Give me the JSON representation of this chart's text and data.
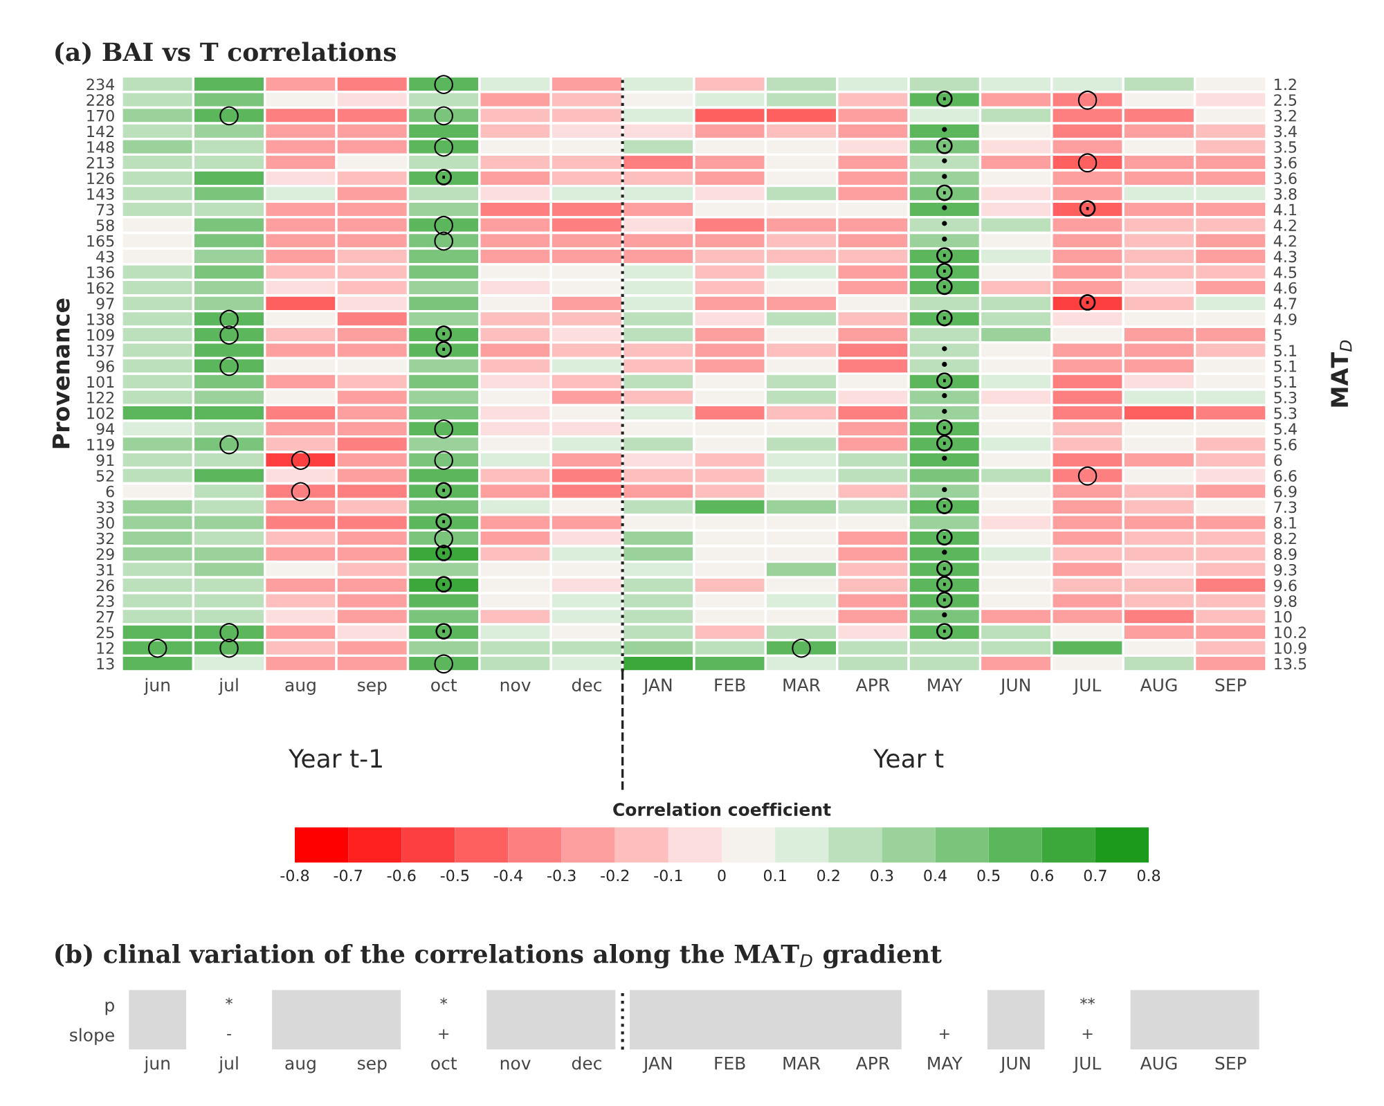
{
  "chart_data": [
    {
      "type": "heatmap",
      "title": "(a) BAI vs T correlations",
      "ylabel": "Provenance",
      "y2label": "MAT$_{D}$",
      "clabel": "Correlation coefficient",
      "annotations": [
        "Year t-1",
        "Year t"
      ],
      "categories": [
        "jun",
        "jul",
        "aug",
        "sep",
        "oct",
        "nov",
        "dec",
        "JAN",
        "FEB",
        "MAR",
        "APR",
        "MAY",
        "JUN",
        "JUL",
        "AUG",
        "SEP"
      ],
      "y_categories": [
        "234",
        "228",
        "170",
        "142",
        "148",
        "213",
        "126",
        "143",
        "73",
        "58",
        "165",
        "43",
        "136",
        "162",
        "97",
        "138",
        "109",
        "137",
        "96",
        "101",
        "122",
        "102",
        "94",
        "119",
        "91",
        "52",
        "6",
        "33",
        "30",
        "32",
        "29",
        "31",
        "26",
        "23",
        "27",
        "25",
        "12",
        "13"
      ],
      "y2_categories": [
        "1.2",
        "2.5",
        "3.2",
        "3.4",
        "3.5",
        "3.6",
        "3.6",
        "3.8",
        "4.1",
        "4.2",
        "4.2",
        "4.3",
        "4.5",
        "4.6",
        "4.7",
        "4.9",
        "5",
        "5.1",
        "5.1",
        "5.1",
        "5.3",
        "5.3",
        "5.4",
        "5.6",
        "6",
        "6.6",
        "6.9",
        "7.3",
        "8.1",
        "8.2",
        "8.9",
        "9.3",
        "9.6",
        "9.8",
        "10",
        "10.2",
        "10.9",
        "13.5"
      ],
      "clim": [
        -0.8,
        0.8
      ],
      "cticks": [
        -0.8,
        -0.7,
        -0.6,
        -0.5,
        -0.4,
        -0.3,
        -0.2,
        -0.1,
        0,
        0.1,
        0.2,
        0.3,
        0.4,
        0.5,
        0.6,
        0.7,
        0.8
      ],
      "cells": [
        [
          0.3,
          0.5,
          -0.25,
          -0.4,
          0.55,
          0.15,
          -0.2,
          0.15,
          -0.1,
          0.2,
          0.15,
          0.3,
          0.15,
          0.15,
          0.3,
          0.05
        ],
        [
          0.25,
          0.45,
          0.05,
          -0.05,
          0.3,
          -0.25,
          -0.15,
          0.05,
          0.15,
          0.25,
          -0.1,
          0.55,
          -0.2,
          -0.35,
          0.05,
          -0.05
        ],
        [
          0.35,
          0.6,
          -0.35,
          -0.35,
          0.45,
          -0.15,
          -0.1,
          0.15,
          -0.45,
          -0.45,
          -0.25,
          0.1,
          0.25,
          -0.35,
          -0.4,
          0.05
        ],
        [
          0.25,
          0.4,
          -0.3,
          -0.3,
          0.5,
          -0.1,
          -0.05,
          -0.05,
          -0.2,
          -0.15,
          -0.25,
          0.5,
          0.05,
          -0.35,
          -0.2,
          -0.15
        ],
        [
          0.4,
          0.3,
          -0.2,
          -0.2,
          0.5,
          0.05,
          0.05,
          0.3,
          0.05,
          0.05,
          -0.05,
          0.45,
          -0.05,
          -0.25,
          0.05,
          -0.15
        ],
        [
          0.2,
          0.2,
          -0.25,
          0.05,
          0.3,
          -0.1,
          -0.1,
          -0.35,
          -0.3,
          0.05,
          -0.25,
          0.3,
          -0.2,
          -0.45,
          -0.25,
          -0.2
        ],
        [
          0.3,
          0.5,
          -0.05,
          -0.15,
          0.6,
          -0.3,
          -0.1,
          -0.15,
          -0.2,
          0.05,
          -0.3,
          0.35,
          0.05,
          -0.2,
          -0.25,
          -0.2
        ],
        [
          0.25,
          0.45,
          0.15,
          -0.25,
          0.3,
          -0.05,
          0.1,
          0.15,
          -0.05,
          0.3,
          -0.3,
          0.45,
          -0.05,
          -0.2,
          0.15,
          0.15
        ],
        [
          0.3,
          0.3,
          -0.2,
          -0.2,
          0.35,
          -0.4,
          -0.35,
          -0.25,
          0.05,
          0.05,
          0.05,
          0.5,
          -0.05,
          -0.5,
          -0.3,
          -0.2
        ],
        [
          0.05,
          0.45,
          -0.25,
          -0.25,
          0.5,
          -0.2,
          -0.35,
          -0.05,
          -0.4,
          -0.3,
          -0.3,
          0.3,
          0.25,
          -0.3,
          -0.1,
          -0.15
        ],
        [
          0.05,
          0.45,
          -0.25,
          -0.3,
          0.45,
          -0.2,
          -0.25,
          -0.2,
          -0.3,
          -0.15,
          -0.3,
          0.35,
          0.05,
          -0.3,
          -0.1,
          -0.25
        ],
        [
          0.05,
          0.4,
          -0.2,
          -0.15,
          0.45,
          -0.2,
          -0.25,
          -0.2,
          -0.15,
          -0.1,
          -0.15,
          0.5,
          0.15,
          -0.25,
          -0.1,
          -0.2
        ],
        [
          0.3,
          0.45,
          -0.1,
          -0.1,
          0.45,
          0.05,
          0.05,
          0.15,
          -0.15,
          0.15,
          -0.3,
          0.55,
          0.05,
          -0.25,
          -0.1,
          -0.15
        ],
        [
          0.25,
          0.35,
          -0.05,
          -0.15,
          0.35,
          -0.05,
          0.05,
          0.15,
          -0.1,
          0.05,
          -0.3,
          0.55,
          -0.1,
          -0.25,
          -0.05,
          -0.2
        ],
        [
          0.25,
          0.4,
          -0.45,
          -0.05,
          0.45,
          0.05,
          -0.3,
          0.15,
          -0.25,
          -0.25,
          0.05,
          0.3,
          0.25,
          -0.6,
          -0.1,
          0.15
        ],
        [
          0.3,
          0.6,
          0.05,
          -0.4,
          0.4,
          -0.1,
          -0.1,
          0.2,
          -0.05,
          0.25,
          -0.1,
          0.5,
          0.25,
          -0.05,
          0.05,
          0.05
        ],
        [
          0.3,
          0.6,
          -0.15,
          -0.3,
          0.6,
          -0.15,
          -0.05,
          0.2,
          -0.25,
          0.05,
          -0.3,
          0.3,
          0.35,
          0.05,
          -0.25,
          -0.25
        ],
        [
          0.3,
          0.5,
          -0.2,
          -0.2,
          0.6,
          -0.25,
          -0.15,
          -0.15,
          -0.3,
          -0.15,
          -0.35,
          0.3,
          0.05,
          -0.3,
          -0.25,
          -0.15
        ],
        [
          0.25,
          0.55,
          0.05,
          0.05,
          0.4,
          -0.15,
          0.15,
          -0.15,
          -0.25,
          0.05,
          -0.4,
          0.3,
          0.05,
          -0.3,
          -0.25,
          0.05
        ],
        [
          0.3,
          0.45,
          -0.3,
          -0.15,
          0.45,
          -0.05,
          -0.1,
          0.25,
          0.05,
          0.2,
          0.05,
          0.6,
          0.15,
          -0.4,
          -0.05,
          0.05
        ],
        [
          0.2,
          0.4,
          0.05,
          -0.3,
          0.35,
          0.05,
          -0.2,
          -0.15,
          0.05,
          0.25,
          -0.05,
          0.4,
          -0.05,
          -0.4,
          0.15,
          0.15
        ],
        [
          0.5,
          0.5,
          -0.4,
          -0.25,
          0.45,
          -0.05,
          0.05,
          0.15,
          -0.35,
          -0.15,
          -0.35,
          0.4,
          0.05,
          -0.35,
          -0.45,
          -0.4
        ],
        [
          0.15,
          0.25,
          -0.25,
          -0.25,
          0.5,
          -0.05,
          -0.05,
          0.05,
          0.05,
          0.05,
          -0.2,
          0.5,
          0.05,
          -0.15,
          0.05,
          0.05
        ],
        [
          0.4,
          0.45,
          -0.1,
          -0.4,
          0.35,
          0.05,
          0.15,
          0.3,
          0.05,
          0.25,
          -0.2,
          0.5,
          0.15,
          -0.15,
          0.05,
          -0.15
        ],
        [
          0.3,
          0.3,
          -0.55,
          -0.25,
          0.45,
          0.15,
          -0.3,
          -0.05,
          -0.1,
          0.15,
          0.25,
          0.5,
          0.05,
          -0.4,
          -0.25,
          -0.15
        ],
        [
          0.25,
          0.5,
          -0.05,
          -0.25,
          0.5,
          -0.1,
          -0.35,
          -0.1,
          -0.15,
          0.15,
          0.2,
          0.45,
          0.25,
          -0.35,
          0.05,
          -0.05
        ],
        [
          0.05,
          0.25,
          -0.35,
          -0.35,
          0.55,
          -0.2,
          -0.35,
          -0.3,
          -0.15,
          0.05,
          -0.15,
          0.4,
          0.05,
          -0.25,
          -0.1,
          -0.25
        ],
        [
          0.4,
          0.3,
          -0.25,
          -0.15,
          0.45,
          0.15,
          0.05,
          0.2,
          0.5,
          0.4,
          0.3,
          0.55,
          0.05,
          -0.25,
          -0.1,
          0.05
        ],
        [
          0.4,
          0.35,
          -0.35,
          -0.4,
          0.6,
          -0.2,
          -0.2,
          0.05,
          0.05,
          0.05,
          0.05,
          0.4,
          -0.05,
          -0.3,
          -0.3,
          -0.3
        ],
        [
          0.35,
          0.3,
          -0.15,
          -0.3,
          0.45,
          -0.2,
          -0.05,
          0.35,
          0.05,
          0.05,
          -0.25,
          0.5,
          0.05,
          -0.2,
          -0.15,
          -0.15
        ],
        [
          0.35,
          0.35,
          -0.25,
          -0.3,
          0.65,
          -0.15,
          0.15,
          0.35,
          0.05,
          0.05,
          -0.2,
          0.5,
          0.15,
          -0.15,
          -0.15,
          -0.1
        ],
        [
          0.3,
          0.35,
          0.05,
          -0.1,
          0.35,
          0.05,
          0.05,
          0.15,
          0.05,
          0.35,
          -0.15,
          0.6,
          0.05,
          -0.25,
          -0.05,
          -0.15
        ],
        [
          0.3,
          0.3,
          -0.3,
          -0.25,
          0.65,
          0.05,
          -0.05,
          0.3,
          -0.1,
          0.05,
          -0.15,
          0.5,
          0.05,
          -0.15,
          -0.15,
          -0.35
        ],
        [
          0.3,
          0.25,
          -0.1,
          -0.3,
          0.5,
          0.05,
          0.15,
          0.3,
          0.05,
          0.15,
          -0.2,
          0.5,
          0.05,
          -0.2,
          -0.1,
          -0.15
        ],
        [
          0.3,
          0.3,
          -0.05,
          -0.25,
          0.45,
          -0.15,
          0.15,
          0.3,
          0.05,
          0.05,
          -0.25,
          0.45,
          -0.2,
          -0.25,
          -0.35,
          -0.1
        ],
        [
          0.5,
          0.55,
          -0.3,
          -0.05,
          0.55,
          0.15,
          0.05,
          0.3,
          -0.15,
          0.25,
          -0.05,
          0.55,
          0.25,
          0.05,
          -0.25,
          -0.2
        ],
        [
          0.6,
          0.55,
          -0.1,
          -0.25,
          0.4,
          0.3,
          0.3,
          0.35,
          0.3,
          0.5,
          0.2,
          0.3,
          0.25,
          0.55,
          0.05,
          -0.15
        ],
        [
          0.5,
          0.15,
          -0.25,
          -0.25,
          0.5,
          0.2,
          0.15,
          0.65,
          0.55,
          0.15,
          0.25,
          0.3,
          -0.25,
          0.05,
          0.3,
          -0.2
        ]
      ],
      "cell_labels": [
        [
          null,
          null,
          null,
          null,
          "○",
          null,
          null,
          null,
          null,
          null,
          null,
          null,
          null,
          null,
          null,
          null
        ],
        [
          null,
          null,
          null,
          null,
          null,
          null,
          null,
          null,
          null,
          null,
          null,
          "⊙",
          null,
          "○",
          null,
          null
        ],
        [
          null,
          "○",
          null,
          null,
          "○",
          null,
          null,
          null,
          null,
          null,
          null,
          null,
          null,
          null,
          null,
          null
        ],
        [
          null,
          null,
          null,
          null,
          null,
          null,
          null,
          null,
          null,
          null,
          null,
          "•",
          null,
          null,
          null,
          null
        ],
        [
          null,
          null,
          null,
          null,
          "○",
          null,
          null,
          null,
          null,
          null,
          null,
          "⊙",
          null,
          null,
          null,
          null
        ],
        [
          null,
          null,
          null,
          null,
          null,
          null,
          null,
          null,
          null,
          null,
          null,
          "•",
          null,
          "○",
          null,
          null
        ],
        [
          null,
          null,
          null,
          null,
          "⊙",
          null,
          null,
          null,
          null,
          null,
          null,
          "•",
          null,
          null,
          null,
          null
        ],
        [
          null,
          null,
          null,
          null,
          null,
          null,
          null,
          null,
          null,
          null,
          null,
          "⊙",
          null,
          null,
          null,
          null
        ],
        [
          null,
          null,
          null,
          null,
          null,
          null,
          null,
          null,
          null,
          null,
          null,
          "•",
          null,
          "⊙",
          null,
          null
        ],
        [
          null,
          null,
          null,
          null,
          "○",
          null,
          null,
          null,
          null,
          null,
          null,
          "•",
          null,
          null,
          null,
          null
        ],
        [
          null,
          null,
          null,
          null,
          "○",
          null,
          null,
          null,
          null,
          null,
          null,
          "•",
          null,
          null,
          null,
          null
        ],
        [
          null,
          null,
          null,
          null,
          null,
          null,
          null,
          null,
          null,
          null,
          null,
          "⊙",
          null,
          null,
          null,
          null
        ],
        [
          null,
          null,
          null,
          null,
          null,
          null,
          null,
          null,
          null,
          null,
          null,
          "⊙",
          null,
          null,
          null,
          null
        ],
        [
          null,
          null,
          null,
          null,
          null,
          null,
          null,
          null,
          null,
          null,
          null,
          "⊙",
          null,
          null,
          null,
          null
        ],
        [
          null,
          null,
          null,
          null,
          null,
          null,
          null,
          null,
          null,
          null,
          null,
          null,
          null,
          "⊙",
          null,
          null
        ],
        [
          null,
          "○",
          null,
          null,
          null,
          null,
          null,
          null,
          null,
          null,
          null,
          "⊙",
          null,
          null,
          null,
          null
        ],
        [
          null,
          "○",
          null,
          null,
          "⊙",
          null,
          null,
          null,
          null,
          null,
          null,
          null,
          null,
          null,
          null,
          null
        ],
        [
          null,
          null,
          null,
          null,
          "⊙",
          null,
          null,
          null,
          null,
          null,
          null,
          "•",
          null,
          null,
          null,
          null
        ],
        [
          null,
          "○",
          null,
          null,
          null,
          null,
          null,
          null,
          null,
          null,
          null,
          "•",
          null,
          null,
          null,
          null
        ],
        [
          null,
          null,
          null,
          null,
          null,
          null,
          null,
          null,
          null,
          null,
          null,
          "⊙",
          null,
          null,
          null,
          null
        ],
        [
          null,
          null,
          null,
          null,
          null,
          null,
          null,
          null,
          null,
          null,
          null,
          "•",
          null,
          null,
          null,
          null
        ],
        [
          null,
          null,
          null,
          null,
          null,
          null,
          null,
          null,
          null,
          null,
          null,
          "•",
          null,
          null,
          null,
          null
        ],
        [
          null,
          null,
          null,
          null,
          "○",
          null,
          null,
          null,
          null,
          null,
          null,
          "⊙",
          null,
          null,
          null,
          null
        ],
        [
          null,
          "○",
          null,
          null,
          null,
          null,
          null,
          null,
          null,
          null,
          null,
          "⊙",
          null,
          null,
          null,
          null
        ],
        [
          null,
          null,
          "○",
          null,
          "○",
          null,
          null,
          null,
          null,
          null,
          null,
          "•",
          null,
          null,
          null,
          null
        ],
        [
          null,
          null,
          null,
          null,
          null,
          null,
          null,
          null,
          null,
          null,
          null,
          null,
          null,
          "○",
          null,
          null
        ],
        [
          null,
          null,
          "○",
          null,
          "⊙",
          null,
          null,
          null,
          null,
          null,
          null,
          "•",
          null,
          null,
          null,
          null
        ],
        [
          null,
          null,
          null,
          null,
          null,
          null,
          null,
          null,
          null,
          null,
          null,
          "⊙",
          null,
          null,
          null,
          null
        ],
        [
          null,
          null,
          null,
          null,
          "⊙",
          null,
          null,
          null,
          null,
          null,
          null,
          null,
          null,
          null,
          null,
          null
        ],
        [
          null,
          null,
          null,
          null,
          "○",
          null,
          null,
          null,
          null,
          null,
          null,
          "⊙",
          null,
          null,
          null,
          null
        ],
        [
          null,
          null,
          null,
          null,
          "⊙",
          null,
          null,
          null,
          null,
          null,
          null,
          "•",
          null,
          null,
          null,
          null
        ],
        [
          null,
          null,
          null,
          null,
          null,
          null,
          null,
          null,
          null,
          null,
          null,
          "⊙",
          null,
          null,
          null,
          null
        ],
        [
          null,
          null,
          null,
          null,
          "⊙",
          null,
          null,
          null,
          null,
          null,
          null,
          "⊙",
          null,
          null,
          null,
          null
        ],
        [
          null,
          null,
          null,
          null,
          null,
          null,
          null,
          null,
          null,
          null,
          null,
          "⊙",
          null,
          null,
          null,
          null
        ],
        [
          null,
          null,
          null,
          null,
          null,
          null,
          null,
          null,
          null,
          null,
          null,
          "•",
          null,
          null,
          null,
          null
        ],
        [
          null,
          "○",
          null,
          null,
          "⊙",
          null,
          null,
          null,
          null,
          null,
          null,
          "⊙",
          null,
          null,
          null,
          null
        ],
        [
          "○",
          "○",
          null,
          null,
          null,
          null,
          null,
          null,
          null,
          "○",
          null,
          null,
          null,
          null,
          null,
          null
        ],
        [
          null,
          null,
          null,
          null,
          "○",
          null,
          null,
          null,
          null,
          null,
          null,
          null,
          null,
          null,
          null,
          null
        ]
      ]
    },
    {
      "type": "other",
      "title": "(b) clinal variation of the correlations along the MAT$_{D}$ gradient",
      "categories": [
        "jun",
        "jul",
        "aug",
        "sep",
        "oct",
        "nov",
        "dec",
        "JAN",
        "FEB",
        "MAR",
        "APR",
        "MAY",
        "JUN",
        "JUL",
        "AUG",
        "SEP"
      ],
      "y_categories": [
        "p",
        "slope"
      ],
      "cell_labels": [
        [
          null,
          "*",
          null,
          null,
          "*",
          null,
          null,
          null,
          null,
          null,
          null,
          null,
          null,
          "**",
          null,
          null
        ],
        [
          null,
          "-",
          null,
          null,
          "+",
          null,
          null,
          null,
          null,
          null,
          null,
          "+",
          null,
          "+",
          null,
          null
        ]
      ]
    }
  ]
}
